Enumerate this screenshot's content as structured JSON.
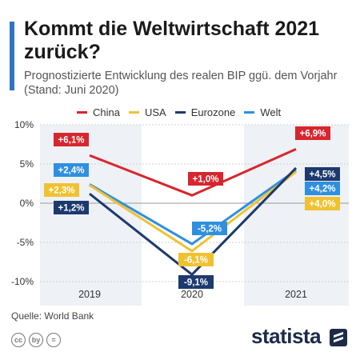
{
  "header": {
    "title": "Kommt die Weltwirtschaft 2021 zurück?",
    "subtitle": "Prognostizierte Entwicklung des realen BIP ggü. dem Vorjahr (Stand: Juni 2020)"
  },
  "footer": {
    "source": "Quelle: World Bank",
    "brand": "statista",
    "license_icons": [
      "cc",
      "by",
      "="
    ]
  },
  "colors": {
    "China": "#d7262e",
    "USA": "#f0c231",
    "Eurozone": "#1d3a6e",
    "Welt": "#2f8fe0",
    "band": "#eef1f6",
    "grid": "#d2d2d2"
  },
  "chart_data": {
    "type": "line",
    "categories": [
      "2019",
      "2020",
      "2021"
    ],
    "ylim": [
      -10,
      10
    ],
    "yticks": [
      10,
      5,
      0,
      -5,
      -10
    ],
    "ytick_labels": [
      "10%",
      "5%",
      "0%",
      "-5%",
      "-10%"
    ],
    "legend": [
      "China",
      "USA",
      "Eurozone",
      "Welt"
    ],
    "legend_position": "top",
    "grid": true,
    "series": [
      {
        "name": "China",
        "values": [
          6.1,
          1.0,
          6.9
        ],
        "labels": [
          "+6,1%",
          "+1,0%",
          "+6,9%"
        ]
      },
      {
        "name": "USA",
        "values": [
          2.3,
          -6.1,
          4.0
        ],
        "labels": [
          "+2,3%",
          "-6,1%",
          "+4,0%"
        ]
      },
      {
        "name": "Eurozone",
        "values": [
          1.2,
          -9.1,
          4.5
        ],
        "labels": [
          "+1,2%",
          "-9,1%",
          "+4,5%"
        ]
      },
      {
        "name": "Welt",
        "values": [
          2.4,
          -5.2,
          4.2
        ],
        "labels": [
          "+2,4%",
          "-5,2%",
          "+4,2%"
        ]
      }
    ]
  }
}
